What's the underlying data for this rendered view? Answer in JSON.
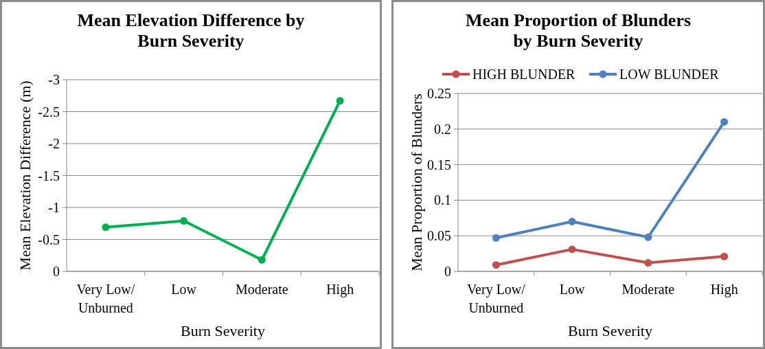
{
  "chart_data": [
    {
      "type": "line",
      "title": "Mean Elevation Difference by Burn Severity",
      "xlabel": "Burn Severity",
      "ylabel": "Mean Elevation Difference (m)",
      "categories": [
        "Very Low/ Unburned",
        "Low",
        "Moderate",
        "High"
      ],
      "series": [
        {
          "color": "#00b050",
          "values": [
            -0.69,
            -0.79,
            -0.18,
            -2.67
          ]
        }
      ],
      "ylim": [
        0,
        -3
      ],
      "yticks": [
        0,
        -0.5,
        -1,
        -1.5,
        -2,
        -2.5,
        -3
      ],
      "grid": "y",
      "marker": "circle",
      "legend": false
    },
    {
      "type": "line",
      "title": "Mean Proportion of Blunders by Burn Severity",
      "xlabel": "Burn Severity",
      "ylabel": "Mean Proportion of Blunders",
      "categories": [
        "Very Low/ Unburned",
        "Low",
        "Moderate",
        "High"
      ],
      "series": [
        {
          "name": "HIGH BLUNDER",
          "color": "#c0504d",
          "values": [
            0.009,
            0.031,
            0.012,
            0.021
          ]
        },
        {
          "name": "LOW BLUNDER",
          "color": "#4f81bd",
          "values": [
            0.047,
            0.07,
            0.048,
            0.21
          ]
        }
      ],
      "ylim": [
        0,
        0.25
      ],
      "yticks": [
        0,
        0.05,
        0.1,
        0.15,
        0.2,
        0.25
      ],
      "grid": "y",
      "marker": "circle",
      "legend": "top"
    }
  ]
}
